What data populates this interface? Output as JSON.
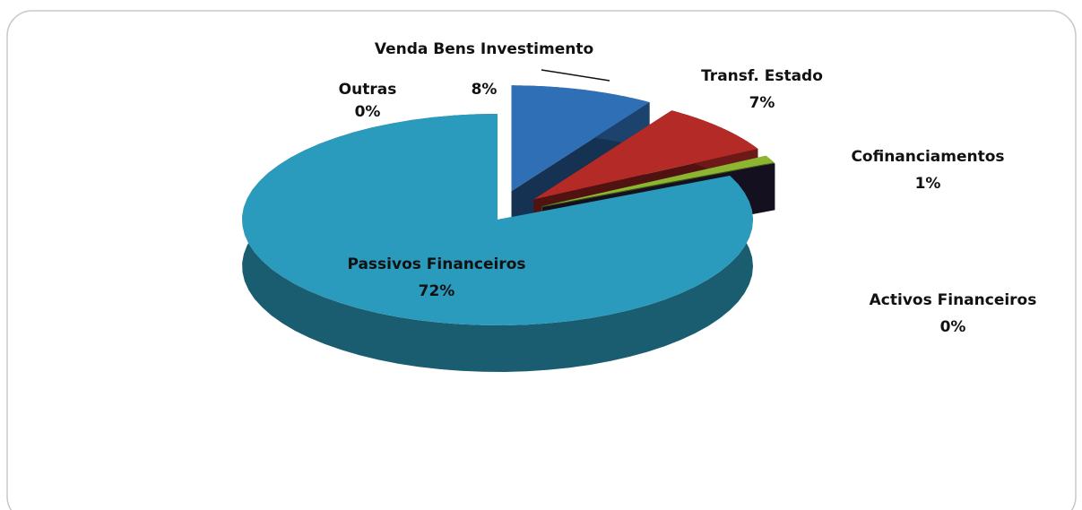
{
  "chart_data": {
    "type": "pie",
    "categories": [
      "Venda Bens Investimento",
      "Transf. Estado",
      "Cofinanciamentos",
      "Activos Financeiros",
      "Passivos Financeiros",
      "Outras"
    ],
    "values": [
      8,
      7,
      1,
      0,
      72,
      0
    ],
    "value_labels": [
      "8%",
      "7%",
      "1%",
      "0%",
      "72%",
      "0%"
    ],
    "colors": [
      "#2f6fb6",
      "#b42a27",
      "#8cb531",
      "#2d2347",
      "#2b9bbd",
      "#7f7f7f"
    ]
  }
}
